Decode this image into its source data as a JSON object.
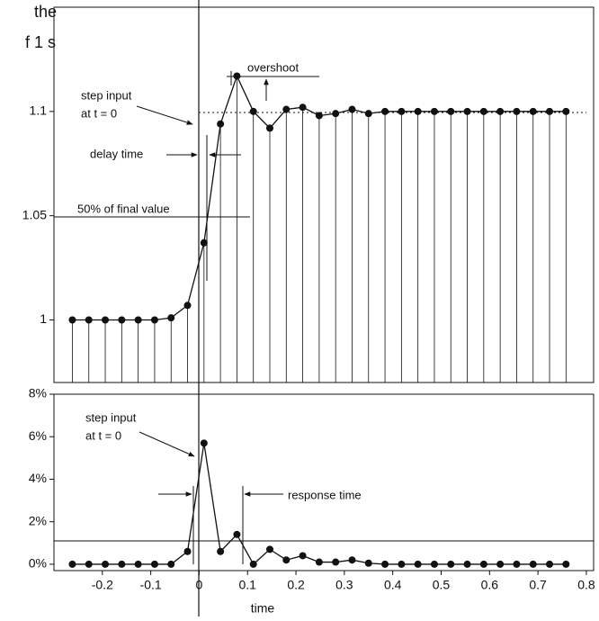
{
  "cropped_text": [
    "the",
    "f 1 s"
  ],
  "chart_data": [
    {
      "type": "stem",
      "stems": true,
      "color": "#111",
      "x": [
        -0.262,
        -0.228,
        -0.194,
        -0.16,
        -0.126,
        -0.092,
        -0.058,
        -0.024,
        0.01,
        0.044,
        0.078,
        0.112,
        0.146,
        0.18,
        0.214,
        0.248,
        0.282,
        0.316,
        0.35,
        0.384,
        0.418,
        0.452,
        0.486,
        0.52,
        0.554,
        0.588,
        0.622,
        0.656,
        0.69,
        0.724,
        0.758
      ],
      "values": [
        1,
        1,
        1,
        1,
        1,
        1,
        1.001,
        1.007,
        1.037,
        1.094,
        1.117,
        1.1,
        1.092,
        1.101,
        1.102,
        1.098,
        1.099,
        1.101,
        1.099,
        1.1,
        1.1,
        1.1,
        1.1,
        1.1,
        1.1,
        1.1,
        1.1,
        1.1,
        1.1,
        1.1,
        1.1
      ],
      "xlim": [
        -0.3,
        0.815
      ],
      "ylim": [
        0.97,
        1.15
      ],
      "yticks": [
        1,
        1.05,
        1.1
      ],
      "annotations": [
        "step input",
        "at t = 0",
        "overshoot",
        "delay time",
        "50% of final value"
      ]
    },
    {
      "type": "stem",
      "stems": false,
      "color": "#111",
      "x": [
        -0.262,
        -0.228,
        -0.194,
        -0.16,
        -0.126,
        -0.092,
        -0.058,
        -0.024,
        0.01,
        0.044,
        0.078,
        0.112,
        0.146,
        0.18,
        0.214,
        0.248,
        0.282,
        0.316,
        0.35,
        0.384,
        0.418,
        0.452,
        0.486,
        0.52,
        0.554,
        0.588,
        0.622,
        0.656,
        0.69,
        0.724,
        0.758
      ],
      "values": [
        0,
        0,
        0,
        0,
        0,
        0,
        0,
        0.6,
        5.7,
        0.6,
        1.4,
        0,
        0.7,
        0.2,
        0.4,
        0.1,
        0.1,
        0.2,
        0.05,
        0,
        0,
        0,
        0,
        0,
        0,
        0,
        0,
        0,
        0,
        0,
        0
      ],
      "xlim": [
        -0.3,
        0.815
      ],
      "ylim": [
        -0.3,
        8
      ],
      "yticks": [
        {
          "value": 0,
          "label": "0%"
        },
        {
          "value": 2,
          "label": "2%"
        },
        {
          "value": 4,
          "label": "4%"
        },
        {
          "value": 6,
          "label": "6%"
        },
        {
          "value": 8,
          "label": "8%"
        }
      ],
      "xticks": [
        -0.2,
        -0.1,
        0,
        0.1,
        0.2,
        0.3,
        0.4,
        0.5,
        0.6,
        0.7,
        0.8
      ],
      "xlabel": "time",
      "annotations": [
        "step input",
        "at t = 0",
        "response time"
      ]
    }
  ]
}
